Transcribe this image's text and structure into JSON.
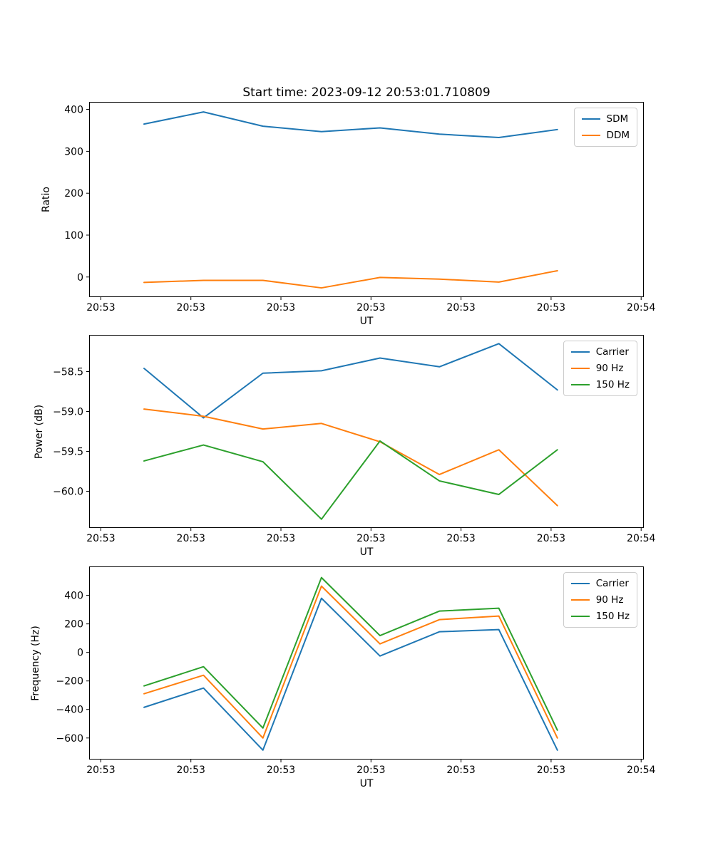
{
  "title": "Start time: 2023-09-12 20:53:01.710809",
  "colors": {
    "blue": "#1f77b4",
    "orange": "#ff7f0e",
    "green": "#2ca02c",
    "spine": "#000000",
    "legend_border": "#cccccc"
  },
  "chart_data": [
    {
      "type": "line",
      "ylabel": "Ratio",
      "xlabel": "UT",
      "grid": false,
      "legend_position": "upper right",
      "x_seconds_after_2053": [
        4.8,
        11.4,
        18.0,
        24.5,
        31.0,
        37.6,
        44.2,
        50.7
      ],
      "xlim_seconds": [
        -1.3,
        60.3
      ],
      "ylim": [
        -48,
        418
      ],
      "xticks": {
        "seconds": [
          0,
          10,
          20,
          30,
          40,
          50,
          60
        ],
        "labels": [
          "20:53",
          "20:53",
          "20:53",
          "20:53",
          "20:53",
          "20:53",
          "20:54"
        ]
      },
      "yticks": {
        "values": [
          0,
          100,
          200,
          300,
          400
        ],
        "labels": [
          "0",
          "100",
          "200",
          "300",
          "400"
        ]
      },
      "series": [
        {
          "name": "SDM",
          "color": "#1f77b4",
          "values": [
            365,
            394,
            360,
            347,
            356,
            341,
            333,
            352
          ]
        },
        {
          "name": "DDM",
          "color": "#ff7f0e",
          "values": [
            -13,
            -8,
            -8,
            -26,
            -1,
            -5,
            -12,
            15
          ]
        }
      ]
    },
    {
      "type": "line",
      "ylabel": "Power (dB)",
      "xlabel": "UT",
      "grid": false,
      "legend_position": "upper right",
      "x_seconds_after_2053": [
        4.8,
        11.4,
        18.0,
        24.5,
        31.0,
        37.6,
        44.2,
        50.7
      ],
      "xlim_seconds": [
        -1.3,
        60.3
      ],
      "ylim": [
        -60.46,
        -58.04
      ],
      "xticks": {
        "seconds": [
          0,
          10,
          20,
          30,
          40,
          50,
          60
        ],
        "labels": [
          "20:53",
          "20:53",
          "20:53",
          "20:53",
          "20:53",
          "20:53",
          "20:54"
        ]
      },
      "yticks": {
        "values": [
          -60.0,
          -59.5,
          -59.0,
          -58.5
        ],
        "labels": [
          "−60.0",
          "−59.5",
          "−59.0",
          "−58.5"
        ]
      },
      "series": [
        {
          "name": "Carrier",
          "color": "#1f77b4",
          "values": [
            -58.46,
            -59.08,
            -58.52,
            -58.49,
            -58.33,
            -58.44,
            -58.15,
            -58.73
          ]
        },
        {
          "name": "90 Hz",
          "color": "#ff7f0e",
          "values": [
            -58.97,
            -59.06,
            -59.22,
            -59.15,
            -59.38,
            -59.79,
            -59.48,
            -60.18
          ]
        },
        {
          "name": "150 Hz",
          "color": "#2ca02c",
          "values": [
            -59.62,
            -59.42,
            -59.63,
            -60.35,
            -59.37,
            -59.87,
            -60.04,
            -59.48
          ]
        }
      ]
    },
    {
      "type": "line",
      "ylabel": "Frequency (Hz)",
      "xlabel": "UT",
      "grid": false,
      "legend_position": "upper right",
      "x_seconds_after_2053": [
        4.8,
        11.4,
        18.0,
        24.5,
        31.0,
        37.6,
        44.2,
        50.7
      ],
      "xlim_seconds": [
        -1.3,
        60.3
      ],
      "ylim": [
        -751,
        603
      ],
      "xticks": {
        "seconds": [
          0,
          10,
          20,
          30,
          40,
          50,
          60
        ],
        "labels": [
          "20:53",
          "20:53",
          "20:53",
          "20:53",
          "20:53",
          "20:53",
          "20:54"
        ]
      },
      "yticks": {
        "values": [
          -600,
          -400,
          -200,
          0,
          200,
          400
        ],
        "labels": [
          "−600",
          "−400",
          "−200",
          "0",
          "200",
          "400"
        ]
      },
      "series": [
        {
          "name": "Carrier",
          "color": "#1f77b4",
          "values": [
            -385,
            -250,
            -685,
            380,
            -25,
            145,
            160,
            -685
          ]
        },
        {
          "name": "90 Hz",
          "color": "#ff7f0e",
          "values": [
            -290,
            -160,
            -600,
            465,
            60,
            230,
            255,
            -600
          ]
        },
        {
          "name": "150 Hz",
          "color": "#2ca02c",
          "values": [
            -235,
            -100,
            -530,
            525,
            118,
            290,
            310,
            -545
          ]
        }
      ]
    }
  ]
}
